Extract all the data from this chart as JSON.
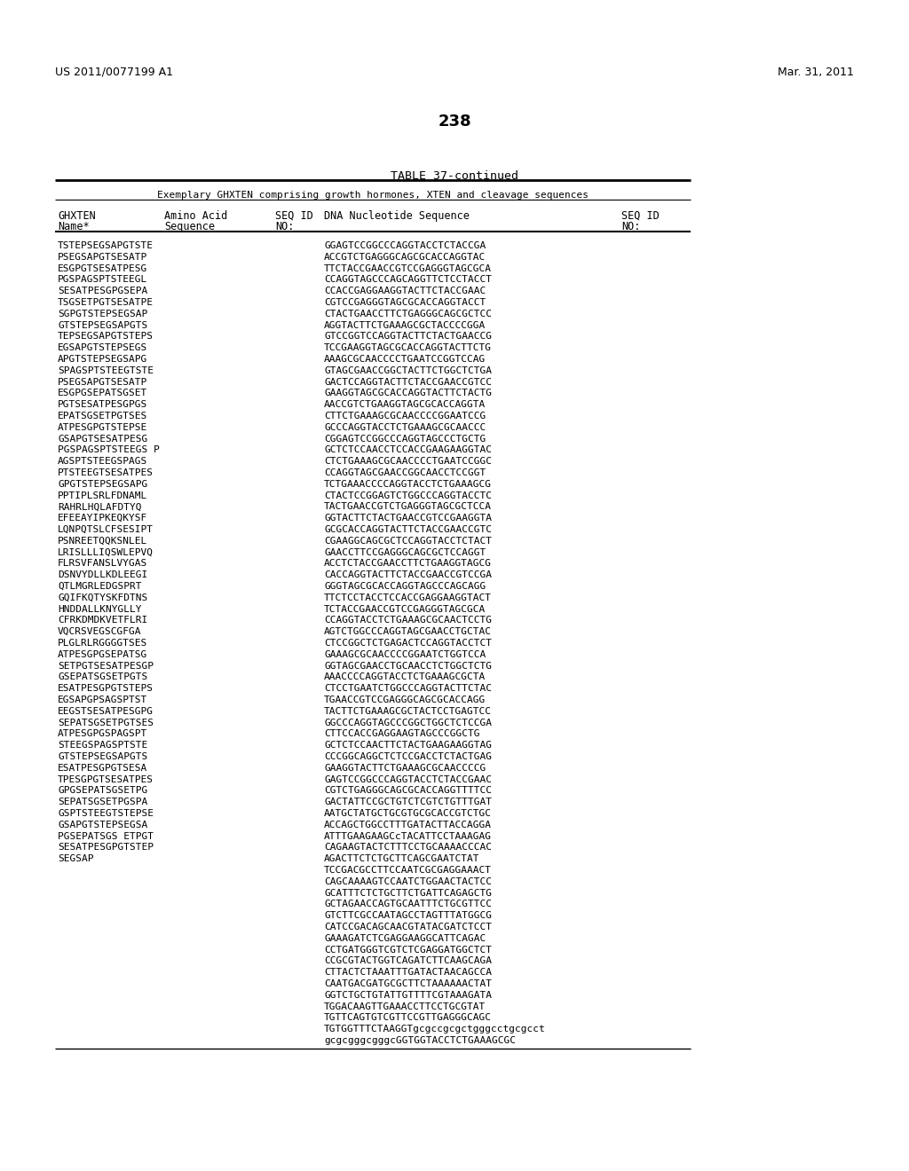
{
  "patent_number": "US 2011/0077199 A1",
  "date": "Mar. 31, 2011",
  "page_number": "238",
  "table_title": "TABLE 37-continued",
  "table_subtitle": "Exemplary GHXTEN comprising growth hormones, XTEN and cleavage sequences",
  "rows": [
    [
      "TSTEPSEGSAPGTSTE",
      "GGAGTCCGGCCCAGGTACCTCTACCGA"
    ],
    [
      "PSEGSAPGTSESATP",
      "ACCGTCTGAGGGCAGCGCACCAGGTAC"
    ],
    [
      "ESGPGTSESATPESG",
      "TTCTACCGAACCGTCCGAGGGTAGCGCA"
    ],
    [
      "PGSPAGSPTSTEEGL",
      "CCAGGTAGCCCAGCAGGTTCTCCTACCT"
    ],
    [
      "SESATPESGPGSEPA",
      "CCACCGAGGAAGGTACTTCTACCGAAC"
    ],
    [
      "TSGSETPGTSESATPE",
      "CGTCCGAGGGTAGCGCACCAGGTACCT"
    ],
    [
      "SGPGTSTEPSEGSAP",
      "CTACTGAACCTTCTGAGGGCAGCGCTCC"
    ],
    [
      "GTSTEPSEGSAPGTS",
      "AGGTACTTCTGAAAGCGCTACCCCGGA"
    ],
    [
      "TEPSEGSAPGTSTEPS",
      "GTCCGGTCCAGGTACTTCTACTGAACCG"
    ],
    [
      "EGSAPGTSTEPSEGS",
      "TCCGAAGGTAGCGCACCAGGTACTTCTG"
    ],
    [
      "APGTSTEPSEGSAPG",
      "AAAGCGCAACCCCTGAATCCGGTCCAG"
    ],
    [
      "SPAGSPTSTEEGTSTE",
      "GTAGCGAACCGGCTACTTCTGGCTCTGA"
    ],
    [
      "PSEGSAPGTSESATP",
      "GACTCCAGGTACTTCTACCGAACCGTCC"
    ],
    [
      "ESGPGSEPATSGSET",
      "GAAGGTAGCGCACCAGGTACTTCTACTG"
    ],
    [
      "PGTSESATPESGPGS",
      "AACCGTCTGAAGGTAGCGCACCAGGTA"
    ],
    [
      "EPATSGSETPGTSES",
      "CTTCTGAAAGCGCAACCCCGGAATCCG"
    ],
    [
      "ATPESGPGTSTEPSE",
      "GCCCAGGTACCTCTGAAAGCGCAACCC"
    ],
    [
      "GSAPGTSESATPESG",
      "CGGAGTCCGGCCCAGGTAGCCCTGCTG"
    ],
    [
      "PGSPAGSPTSTEEGS P",
      "GCTCTCCAACCTCCACCGAAGAAGGTAC"
    ],
    [
      "AGSPTSTEEGSPAGS",
      "CTCTGAAAGCGCAACCCCTGAATCCGGC"
    ],
    [
      "PTSTEEGTSESATPES",
      "CCAGGTAGCGAACCGGCAACCTCCGGT"
    ],
    [
      "GPGTSTEPSEGSAPG",
      "TCTGAAACCCCAGGTACCTCTGAAAGCG"
    ],
    [
      "PPTIPLSRLFDNAML",
      "CTACTCCGGAGTCTGGCCCAGGTACCTC"
    ],
    [
      "RAHRLHQLAFDTYQ",
      "TACTGAACCGTCTGAGGGTAGCGCTCCA"
    ],
    [
      "EFEEAYIPKEQKYSF",
      "GGTACTTCTACTGAACCGTCCGAAGGTA"
    ],
    [
      "LQNPQTSLCFSESIPT",
      "GCGCACCAGGTACTTCTACCGAACCGTC"
    ],
    [
      "PSNREETQQKSNLEL",
      "CGAAGGCAGCGCTCCAGGTACCTCTACT"
    ],
    [
      "LRISLLLIQSWLEPVQ",
      "GAACCTTCCGAGGGCAGCGCTCCAGGT"
    ],
    [
      "FLRSVFANSLVYGAS",
      "ACCTCTACCGAACCTTCTGAAGGTAGCG"
    ],
    [
      "DSNVYDLLKDLEEGI",
      "CACCAGGTACTTCTACCGAACCGTCCGA"
    ],
    [
      "QTLMGRLEDGSPRT",
      "GGGTAGCGCACCAGGTAGCCCAGCAGG"
    ],
    [
      "GQIFKQTYSKFDTNS",
      "TTCTCCTACCTCCACCGAGGAAGGTACT"
    ],
    [
      "HNDDALLKNYGLLY",
      "TCTACCGAACCGTCCGAGGGTAGCGCA"
    ],
    [
      "CFRKDMDKVETFLRI",
      "CCAGGTACCTCTGAAAGCGCAACTCCTG"
    ],
    [
      "VQCRSVEGSCGFGA",
      "AGTCTGGCCCAGGTAGCGAACCTGCTAC"
    ],
    [
      "PLGLRLRGGGGTSES",
      "CTCCGGCTCTGAGACTCCAGGTACCTCT"
    ],
    [
      "ATPESGPGSEPATSG",
      "GAAAGCGCAACCCCGGAATCTGGTCCA"
    ],
    [
      "SETPGTSESATPESGP",
      "GGTAGCGAACCTGCAACCTCTGGCTCTG"
    ],
    [
      "GSEPATSGSETPGTS",
      "AAACCCCAGGTACCTCTGAAAGCGCTA"
    ],
    [
      "ESATPESGPGTSTEPS",
      "CTCCTGAATCTGGCCCAGGTACTTCTAC"
    ],
    [
      "EGSAPGPSAGSPTST",
      "TGAACCGTCCGAGGGCAGCGCACCAGG"
    ],
    [
      "EEGSTSESATPESGPG",
      "TACTTCTGAAAGCGCTACTCCTGAGTCC"
    ],
    [
      "SEPATSGSETPGTSES",
      "GGCCCAGGTAGCCCGGCTGGCTCTCCGA"
    ],
    [
      "ATPESGPGSPAGSPT",
      "CTTCCACCGAGGAAGTAGCCCGGCTG"
    ],
    [
      "STEEGSPAGSPTSTE",
      "GCTCTCCAACTTCTACTGAAGAAGGTAG"
    ],
    [
      "GTSTEPSEGSAPGTS",
      "CCCGGCAGGCTCTCCGACCTCTACTGAG"
    ],
    [
      "ESATPESGPGTSESA",
      "GAAGGTACTTCTGAAAGCGCAACCCCG"
    ],
    [
      "TPESGPGTSESATPES",
      "GAGTCCGGCCCAGGTACCTCTACCGAAC"
    ],
    [
      "GPGSEPATSGSETPG",
      "CGTCTGAGGGCAGCGCACCAGGTTTTCC"
    ],
    [
      "SEPATSGSETPGSPA",
      "GACTATTCCGCTGTCTCGTCTGTTTGAT"
    ],
    [
      "GSPTSTEEGTSTEPSE",
      "AATGCTATGCTGCGTGCGCACCGTCTGC"
    ],
    [
      "GSAPGTSTEPSEGSA",
      "ACCAGCTGGCCTTTGATACTTACCAGGA"
    ],
    [
      "PGSEPATSGS ETPGT",
      "ATTTGAAGAAGCcTACATTCCTAAAGAG"
    ],
    [
      "SESATPESGPGTSTEP",
      "CAGAAGTACTCTTTCCTGCAAAACCCAC"
    ],
    [
      "SEGSAP",
      "AGACTTCTCTGCTTCAGCGAATCTAT\nTCCGACGCCTTCCAATCGCGAGGAAACT\nCAGCAAAAGTCCAATCTGGAACTACTCC\nGCATTTCTCTGCTTCTGATTCAGAGCTG\nGCTAGAACCAGTGCAATTTCTGCGTTCC\nGTCTTCGCCAATAGCCTAGTTTATGGCG\nCATCCGACAGCAACGTATACGATCTCCT\nGAAAGATCTCGAGGAAGGCATTCAGAC\nCCTGATGGGTCGTCTCGAGGATGGCTCT\nCCGCGTACTGGTCAGATCTTCAAGCAGA\nCTTACTCTAAATTTGATACTAACAGCCA\nCAATGACGATGCGCTTCTAAAAAACTAT\nGGTCTGCTGTATTGTTTTCGTAAAGATA\nTGGACAAGTTGAAACCTTCCTGCGTAT\nTGTTCAGTGTCGTTCCGTTGAGGGCAGC\nTGTGGTTTCTAAGGTgcgccgcgctgggcctgcgcct\ngcgcgggcgggcGGTGGTACCTCTGAAAGCGC"
    ]
  ],
  "bg_color": "#ffffff",
  "text_color": "#000000"
}
